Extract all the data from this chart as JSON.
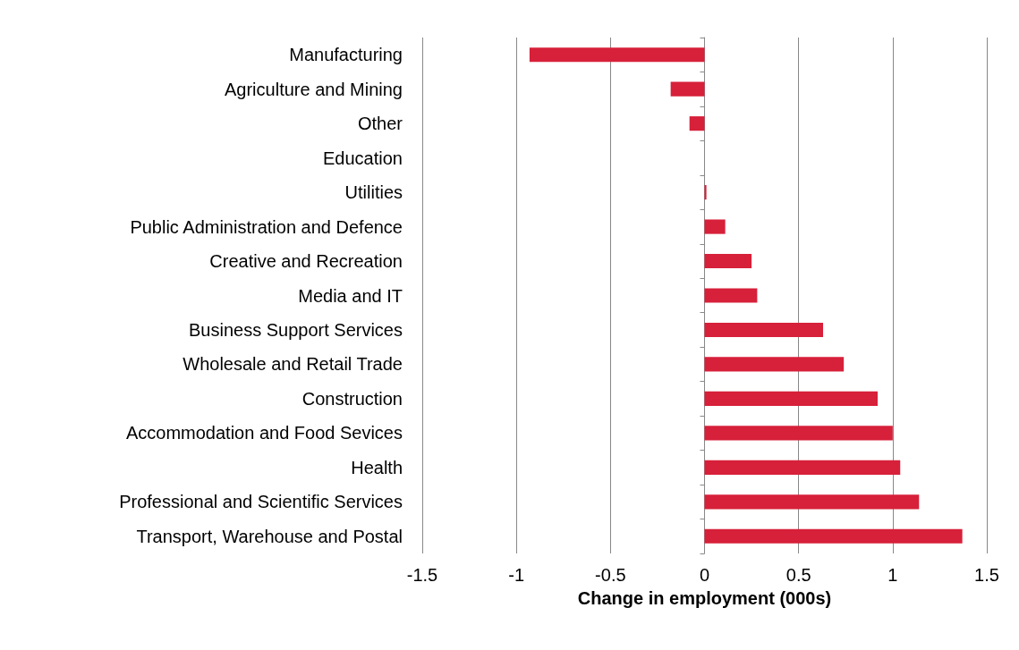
{
  "chart_data": {
    "type": "bar",
    "orientation": "horizontal",
    "xlabel": "Change in employment (000s)",
    "categories": [
      "Manufacturing",
      "Agriculture and Mining",
      "Other",
      "Education",
      "Utilities",
      "Public Administration and Defence",
      "Creative and Recreation",
      "Media and IT",
      "Business Support Services",
      "Wholesale and Retail Trade",
      "Construction",
      "Accommodation and Food Sevices",
      "Health",
      "Professional and Scientific Services",
      "Transport, Warehouse and Postal"
    ],
    "values": [
      -0.93,
      -0.18,
      -0.08,
      0,
      0.01,
      0.11,
      0.25,
      0.28,
      0.63,
      0.74,
      0.92,
      1.0,
      1.04,
      1.14,
      1.37
    ],
    "color": "#d7203a",
    "xlim": [
      -1.5,
      1.5
    ],
    "xticks": [
      -1.5,
      -1,
      -0.5,
      0,
      0.5,
      1,
      1.5
    ],
    "grid": "x"
  }
}
